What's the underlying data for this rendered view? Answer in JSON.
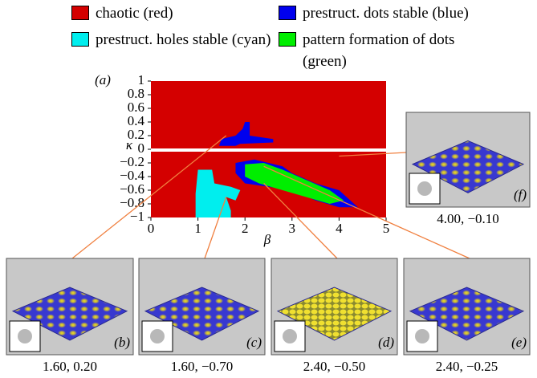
{
  "chart_data": {
    "type": "region-map",
    "panel_label": "(a)",
    "xlabel": "β",
    "ylabel": "κ",
    "xlim": [
      0,
      5
    ],
    "ylim": [
      -1,
      1
    ],
    "xticks": [
      0,
      1,
      2,
      3,
      4,
      5
    ],
    "yticks": [
      1,
      0.8,
      0.6,
      0.4,
      0.2,
      0,
      {
        "value": -0.2,
        "label": "−0.2"
      },
      {
        "value": -0.4,
        "label": "−0.4"
      },
      {
        "value": -0.6,
        "label": "−0.6"
      },
      {
        "value": -0.8,
        "label": "−0.8"
      },
      {
        "value": -1,
        "label": "−1"
      }
    ],
    "regions": [
      {
        "name": "chaotic (red)",
        "color": "#d40000",
        "x": [
          0,
          5,
          5,
          0
        ],
        "y": [
          1,
          1,
          -1,
          -1
        ]
      },
      {
        "name": "prestruct. dots stable (blue)",
        "color": "#0000ee",
        "x": [
          1.45,
          1.5,
          1.8,
          1.95,
          2.0,
          2.1,
          2.1,
          2.6,
          2.6,
          1.9,
          1.8
        ],
        "y": [
          0.05,
          0.15,
          0.2,
          0.3,
          0.4,
          0.4,
          0.2,
          0.15,
          0.1,
          0.08,
          0.05
        ]
      },
      {
        "name": "prestruct. holes stable (cyan)",
        "color": "#00eeee",
        "x": [
          0.95,
          1.0,
          1.3,
          1.35,
          1.7,
          1.9,
          1.8,
          1.6,
          1.7,
          1.7,
          0.95
        ],
        "y": [
          -0.65,
          -0.3,
          -0.3,
          -0.5,
          -0.55,
          -0.6,
          -0.75,
          -0.7,
          -0.9,
          -1,
          -1
        ]
      },
      {
        "name": "pattern formation of dots (green)",
        "color": "#00ee00",
        "x": [
          1.8,
          2.2,
          2.8,
          3.0,
          3.5,
          4.0,
          4.4,
          4.0,
          3.5,
          3.0,
          2.5,
          2.0,
          1.8
        ],
        "y": [
          -0.2,
          -0.15,
          -0.25,
          -0.35,
          -0.5,
          -0.6,
          -0.85,
          -0.85,
          -0.75,
          -0.6,
          -0.55,
          -0.5,
          -0.35
        ],
        "inner_x": [
          2.0,
          2.4,
          2.8,
          3.3,
          3.8,
          4.1,
          3.8,
          3.3,
          2.8,
          2.3,
          2.0
        ],
        "inner_y": [
          -0.22,
          -0.2,
          -0.3,
          -0.45,
          -0.6,
          -0.75,
          -0.8,
          -0.7,
          -0.6,
          -0.5,
          -0.4
        ]
      }
    ],
    "insets": [
      {
        "label": "(b)",
        "caption": "1.60, 0.20",
        "beta": 1.6,
        "kappa": 0.2
      },
      {
        "label": "(c)",
        "caption": "1.60, −0.70",
        "beta": 1.6,
        "kappa": -0.7
      },
      {
        "label": "(d)",
        "caption": "2.40, −0.50",
        "beta": 2.4,
        "kappa": -0.5
      },
      {
        "label": "(e)",
        "caption": "2.40, −0.25",
        "beta": 2.4,
        "kappa": -0.25
      },
      {
        "label": "(f)",
        "caption": "4.00, −0.10",
        "beta": 4.0,
        "kappa": -0.1
      }
    ]
  }
}
